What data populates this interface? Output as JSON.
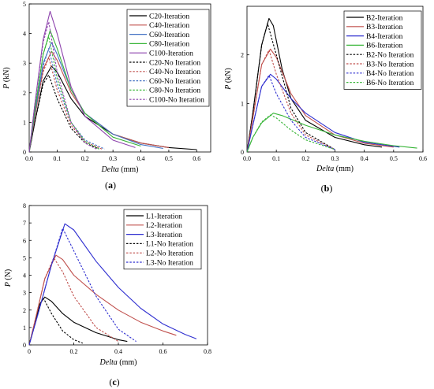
{
  "chart_data": [
    {
      "type": "line",
      "panel_label": "(a)",
      "xlabel": "Delta",
      "xunit": " (mm)",
      "ylabel": "P",
      "yunit": " (kN)",
      "xlim": [
        0,
        0.65
      ],
      "ylim": [
        0,
        5
      ],
      "xticks": [
        0.0,
        0.1,
        0.2,
        0.3,
        0.4,
        0.5,
        0.6
      ],
      "yticks": [
        0,
        1,
        2,
        3,
        4,
        5
      ],
      "xtick_labels": [
        "0.0",
        "0.1",
        "0.2",
        "0.3",
        "0.4",
        "0.5",
        "0.6"
      ],
      "ytick_labels": [
        "0",
        "1",
        "2",
        "3",
        "4",
        "5"
      ],
      "legend_position": "top-right",
      "series": [
        {
          "name": "C20-Iteration",
          "color": "#000000",
          "dash": "solid",
          "x": [
            0,
            0.02,
            0.05,
            0.08,
            0.1,
            0.15,
            0.2,
            0.3,
            0.4,
            0.5,
            0.6
          ],
          "y": [
            0,
            1.0,
            2.4,
            2.9,
            2.7,
            1.8,
            1.2,
            0.6,
            0.3,
            0.15,
            0.08
          ]
        },
        {
          "name": "C40-Iteration",
          "color": "#c0504d",
          "dash": "solid",
          "x": [
            0,
            0.02,
            0.05,
            0.08,
            0.1,
            0.15,
            0.2,
            0.3,
            0.4,
            0.5
          ],
          "y": [
            0,
            1.2,
            2.8,
            3.4,
            3.1,
            2.0,
            1.3,
            0.6,
            0.3,
            0.15
          ]
        },
        {
          "name": "C60-Iteration",
          "color": "#4472c4",
          "dash": "solid",
          "x": [
            0,
            0.02,
            0.05,
            0.08,
            0.1,
            0.15,
            0.2,
            0.3,
            0.4,
            0.48
          ],
          "y": [
            0,
            1.3,
            3.0,
            3.7,
            3.3,
            2.1,
            1.3,
            0.6,
            0.25,
            0.12
          ]
        },
        {
          "name": "C80-Iteration",
          "color": "#38b538",
          "dash": "solid",
          "x": [
            0,
            0.02,
            0.05,
            0.075,
            0.1,
            0.15,
            0.2,
            0.3,
            0.4
          ],
          "y": [
            0,
            1.4,
            3.3,
            4.1,
            3.5,
            2.1,
            1.3,
            0.5,
            0.2
          ]
        },
        {
          "name": "C100-Iteration",
          "color": "#8e44ad",
          "dash": "solid",
          "x": [
            0,
            0.02,
            0.05,
            0.075,
            0.1,
            0.15,
            0.2,
            0.3,
            0.38
          ],
          "y": [
            0,
            1.6,
            3.8,
            4.75,
            4.0,
            2.2,
            1.2,
            0.4,
            0.15
          ]
        },
        {
          "name": "C20-No Iteration",
          "color": "#000000",
          "dash": "dash",
          "x": [
            0,
            0.02,
            0.05,
            0.07,
            0.1,
            0.15,
            0.2,
            0.25
          ],
          "y": [
            0,
            1.0,
            2.3,
            2.6,
            1.8,
            0.8,
            0.3,
            0.1
          ]
        },
        {
          "name": "C40-No Iteration",
          "color": "#c0504d",
          "dash": "dash",
          "x": [
            0,
            0.02,
            0.05,
            0.07,
            0.1,
            0.15,
            0.2,
            0.26
          ],
          "y": [
            0,
            1.2,
            2.7,
            3.2,
            2.1,
            0.9,
            0.35,
            0.1
          ]
        },
        {
          "name": "C60-No Iteration",
          "color": "#4472c4",
          "dash": "dash",
          "x": [
            0,
            0.02,
            0.05,
            0.07,
            0.1,
            0.15,
            0.2,
            0.27
          ],
          "y": [
            0,
            1.3,
            2.9,
            3.5,
            2.3,
            1.0,
            0.4,
            0.1
          ]
        },
        {
          "name": "C80-No Iteration",
          "color": "#38b538",
          "dash": "dash",
          "x": [
            0,
            0.02,
            0.05,
            0.07,
            0.1,
            0.15,
            0.2,
            0.25
          ],
          "y": [
            0,
            1.4,
            3.3,
            3.9,
            2.5,
            1.0,
            0.35,
            0.1
          ]
        },
        {
          "name": "C100-No Iteration",
          "color": "#8e44ad",
          "dash": "dash",
          "x": [
            0,
            0.02,
            0.05,
            0.07,
            0.1,
            0.15,
            0.2,
            0.24
          ],
          "y": [
            0,
            1.6,
            3.7,
            4.4,
            2.7,
            1.0,
            0.3,
            0.1
          ]
        }
      ]
    },
    {
      "type": "line",
      "panel_label": "(b)",
      "xlabel": "Delta",
      "xunit": " (mm)",
      "ylabel": "P",
      "yunit": " (kN)",
      "xlim": [
        0,
        0.6
      ],
      "ylim": [
        0,
        3
      ],
      "xticks": [
        0.0,
        0.1,
        0.2,
        0.3,
        0.4,
        0.5,
        0.6
      ],
      "yticks": [
        0,
        1,
        2
      ],
      "xtick_labels": [
        "0.0",
        "0.1",
        "0.2",
        "0.3",
        "0.4",
        "0.5",
        "0.6"
      ],
      "ytick_labels": [
        "0",
        "1",
        "2"
      ],
      "legend_position": "top-right",
      "series": [
        {
          "name": "B2-Iteration",
          "color": "#000000",
          "dash": "solid",
          "x": [
            0,
            0.02,
            0.05,
            0.075,
            0.09,
            0.12,
            0.15,
            0.2,
            0.3,
            0.4,
            0.46
          ],
          "y": [
            0,
            0.8,
            2.2,
            2.75,
            2.6,
            1.7,
            1.1,
            0.65,
            0.3,
            0.15,
            0.1
          ]
        },
        {
          "name": "B3-Iteration",
          "color": "#c0504d",
          "dash": "solid",
          "x": [
            0,
            0.02,
            0.05,
            0.08,
            0.1,
            0.15,
            0.2,
            0.3,
            0.4,
            0.5
          ],
          "y": [
            0,
            0.7,
            1.8,
            2.12,
            1.95,
            1.2,
            0.75,
            0.35,
            0.18,
            0.1
          ]
        },
        {
          "name": "B4-Iteration",
          "color": "#2f2fd0",
          "dash": "solid",
          "x": [
            0,
            0.02,
            0.05,
            0.08,
            0.1,
            0.15,
            0.2,
            0.3,
            0.4,
            0.52
          ],
          "y": [
            0,
            0.55,
            1.35,
            1.6,
            1.5,
            1.1,
            0.8,
            0.4,
            0.2,
            0.1
          ]
        },
        {
          "name": "B6-Iteration",
          "color": "#38b538",
          "dash": "solid",
          "x": [
            0,
            0.02,
            0.05,
            0.09,
            0.12,
            0.2,
            0.3,
            0.4,
            0.5,
            0.58
          ],
          "y": [
            0,
            0.3,
            0.6,
            0.8,
            0.75,
            0.55,
            0.35,
            0.22,
            0.13,
            0.08
          ]
        },
        {
          "name": "B2-No Iteration",
          "color": "#000000",
          "dash": "dash",
          "x": [
            0,
            0.02,
            0.05,
            0.07,
            0.1,
            0.15,
            0.2,
            0.3
          ],
          "y": [
            0,
            0.8,
            2.2,
            2.65,
            2.0,
            0.9,
            0.4,
            0.05
          ]
        },
        {
          "name": "B3-No Iteration",
          "color": "#c0504d",
          "dash": "dash",
          "x": [
            0,
            0.02,
            0.05,
            0.075,
            0.1,
            0.15,
            0.2,
            0.3
          ],
          "y": [
            0,
            0.7,
            1.8,
            2.1,
            1.6,
            0.8,
            0.35,
            0.05
          ]
        },
        {
          "name": "B4-No Iteration",
          "color": "#2f2fd0",
          "dash": "dash",
          "x": [
            0,
            0.02,
            0.05,
            0.075,
            0.1,
            0.15,
            0.2,
            0.3
          ],
          "y": [
            0,
            0.55,
            1.35,
            1.58,
            1.2,
            0.65,
            0.3,
            0.05
          ]
        },
        {
          "name": "B6-No Iteration",
          "color": "#38b538",
          "dash": "dash",
          "x": [
            0,
            0.02,
            0.05,
            0.08,
            0.1,
            0.15,
            0.2,
            0.3
          ],
          "y": [
            0,
            0.3,
            0.62,
            0.76,
            0.7,
            0.45,
            0.25,
            0.05
          ]
        }
      ]
    },
    {
      "type": "line",
      "panel_label": "(c)",
      "xlabel": "Delta",
      "xunit": " (mm)",
      "ylabel": "P",
      "yunit": " (N)",
      "xlim": [
        0,
        0.8
      ],
      "ylim": [
        0,
        8
      ],
      "xticks": [
        0.0,
        0.2,
        0.4,
        0.6,
        0.8
      ],
      "yticks": [
        0,
        1,
        2,
        3,
        4,
        5,
        6,
        7,
        8
      ],
      "xtick_labels": [
        "0",
        "0.2",
        "0.4",
        "0.6",
        "0.8"
      ],
      "ytick_labels": [
        "0",
        "1",
        "2",
        "3",
        "4",
        "5",
        "6",
        "7",
        "8"
      ],
      "legend_position": "top-right",
      "series": [
        {
          "name": "L1-Iteration",
          "color": "#000000",
          "dash": "solid",
          "x": [
            0,
            0.02,
            0.05,
            0.07,
            0.1,
            0.15,
            0.2,
            0.3,
            0.4,
            0.44
          ],
          "y": [
            0,
            1.0,
            2.4,
            2.75,
            2.5,
            1.8,
            1.3,
            0.7,
            0.3,
            0.2
          ]
        },
        {
          "name": "L2-Iteration",
          "color": "#c0504d",
          "dash": "solid",
          "x": [
            0,
            0.03,
            0.07,
            0.12,
            0.15,
            0.2,
            0.3,
            0.4,
            0.5,
            0.6,
            0.66
          ],
          "y": [
            0,
            1.6,
            3.8,
            5.15,
            4.9,
            4.0,
            2.9,
            2.0,
            1.3,
            0.8,
            0.55
          ]
        },
        {
          "name": "L3-Iteration",
          "color": "#2f2fd0",
          "dash": "solid",
          "x": [
            0,
            0.04,
            0.1,
            0.16,
            0.2,
            0.3,
            0.4,
            0.5,
            0.6,
            0.7,
            0.75
          ],
          "y": [
            0,
            1.8,
            4.6,
            6.95,
            6.6,
            4.8,
            3.3,
            2.1,
            1.2,
            0.6,
            0.35
          ]
        },
        {
          "name": "L1-No Iteration",
          "color": "#000000",
          "dash": "dash",
          "x": [
            0,
            0.02,
            0.05,
            0.065,
            0.1,
            0.15,
            0.2,
            0.24
          ],
          "y": [
            0,
            1.0,
            2.4,
            2.65,
            1.8,
            0.8,
            0.3,
            0.1
          ]
        },
        {
          "name": "L2-No Iteration",
          "color": "#c0504d",
          "dash": "dash",
          "x": [
            0,
            0.03,
            0.07,
            0.11,
            0.15,
            0.2,
            0.3,
            0.4
          ],
          "y": [
            0,
            1.6,
            3.8,
            5.0,
            4.2,
            2.8,
            1.0,
            0.2
          ]
        },
        {
          "name": "L3-No Iteration",
          "color": "#2f2fd0",
          "dash": "dash",
          "x": [
            0,
            0.04,
            0.1,
            0.15,
            0.2,
            0.3,
            0.4,
            0.48
          ],
          "y": [
            0,
            1.8,
            4.6,
            6.7,
            5.4,
            2.8,
            0.9,
            0.2
          ]
        }
      ]
    }
  ]
}
